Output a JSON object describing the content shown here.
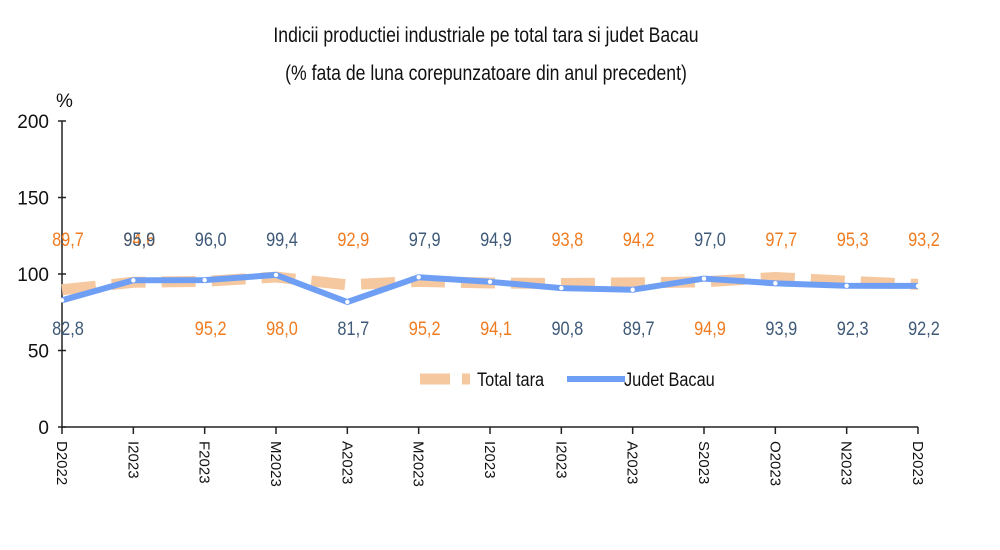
{
  "chart_data": {
    "type": "line",
    "title": "Indicii productiei industriale pe total tara si  judet Bacau",
    "subtitle": "(% fata de luna corepunzatoare din anul precedent)",
    "ylabel": "%",
    "xlabel": "",
    "ylim": [
      0,
      200
    ],
    "yticks": [
      0,
      50,
      100,
      150,
      200
    ],
    "categories": [
      "D2022",
      "I2023",
      "F2023",
      "M2023",
      "A2023",
      "M2023",
      "I2023",
      "I2023",
      "A2023",
      "S2023",
      "O2023",
      "N2023",
      "D2023"
    ],
    "series": [
      {
        "name": "Total tara",
        "values": [
          89.7,
          94.6,
          95.2,
          98.0,
          92.9,
          95.2,
          94.1,
          93.8,
          94.2,
          94.9,
          97.7,
          95.3,
          93.2
        ],
        "labels": [
          "89,7",
          "94,6",
          "95,2",
          "98,0",
          "92,9",
          "95,2",
          "94,1",
          "93,8",
          "94,2",
          "94,9",
          "97,7",
          "95,3",
          "93,2"
        ],
        "label_side": [
          "above",
          "above",
          "below",
          "below",
          "above",
          "below",
          "below",
          "above",
          "above",
          "below",
          "above",
          "above",
          "above"
        ],
        "color": "#f5c8a0",
        "label_color": "#f07c22",
        "style": "dashed"
      },
      {
        "name": "Judet Bacau",
        "values": [
          82.8,
          95.9,
          96.0,
          99.4,
          81.7,
          97.9,
          94.9,
          90.8,
          89.7,
          97.0,
          93.9,
          92.3,
          92.2
        ],
        "labels": [
          "82,8",
          "95,9",
          "96,0",
          "99,4",
          "81,7",
          "97,9",
          "94,9",
          "90,8",
          "89,7",
          "97,0",
          "93,9",
          "92,3",
          "92,2"
        ],
        "label_side": [
          "below",
          "above",
          "above",
          "above",
          "below",
          "above",
          "above",
          "below",
          "below",
          "above",
          "below",
          "below",
          "below"
        ],
        "color": "#6f9ff5",
        "label_color": "#3f5a78",
        "style": "solid"
      }
    ],
    "grid": false,
    "legend": "inside-bottom-right"
  }
}
